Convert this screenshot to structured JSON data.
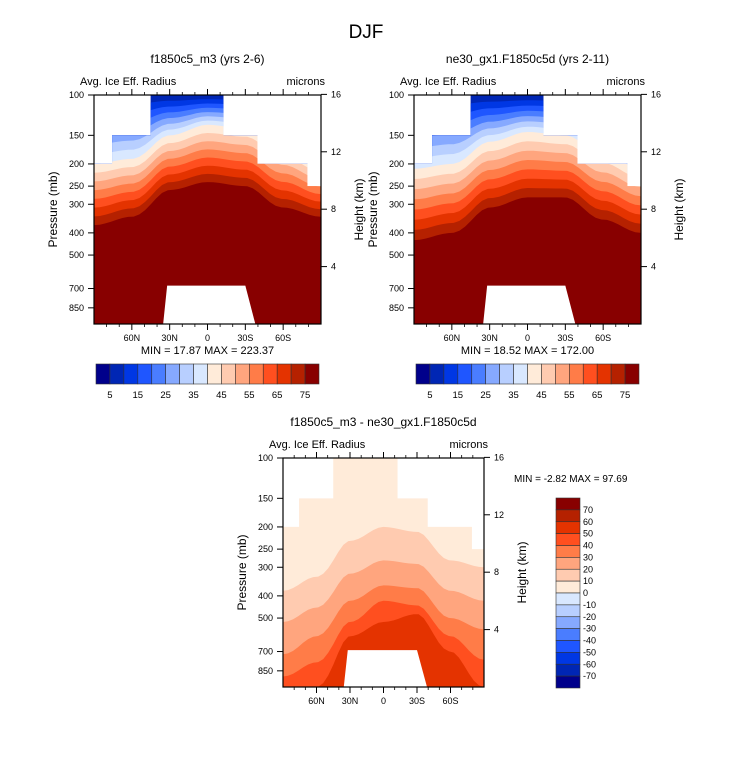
{
  "page_title": "DJF",
  "chart_data": [
    {
      "type": "heatmap",
      "panel": "top-left",
      "title": "f1850c5_m3 (yrs 2-6)",
      "left_string": "Avg. Ice Eff. Radius",
      "right_string": "microns",
      "xlabel": "",
      "ylabel": "Pressure (mb)",
      "ylabel_right": "Height (km)",
      "x_ticks": [
        "60N",
        "30N",
        "0",
        "30S",
        "60S"
      ],
      "x_tick_values": [
        60,
        30,
        0,
        -30,
        -60
      ],
      "xlim": [
        90,
        -90
      ],
      "y_ticks": [
        "100",
        "150",
        "200",
        "250",
        "300",
        "400",
        "500",
        "700",
        "850"
      ],
      "y_tick_values": [
        100,
        150,
        200,
        250,
        300,
        400,
        500,
        700,
        850
      ],
      "ylim": [
        100,
        1000
      ],
      "y_right_ticks": [
        "16",
        "12",
        "8",
        "4"
      ],
      "y_right_tick_values": [
        16,
        12,
        8,
        4
      ],
      "stats": "MIN =  17.87  MAX = 223.37",
      "min": 17.87,
      "max": 223.37,
      "colorbar_labels": [
        "5",
        "15",
        "25",
        "35",
        "45",
        "55",
        "65",
        "75"
      ],
      "colorbar_levels": [
        5,
        10,
        15,
        20,
        25,
        30,
        35,
        40,
        45,
        50,
        55,
        60,
        65,
        70,
        75
      ],
      "profile": {
        "lat": [
          90,
          60,
          30,
          0,
          -30,
          -60,
          -90
        ],
        "level_75_pressure": [
          370,
          340,
          260,
          240,
          250,
          310,
          340
        ],
        "level_40_pressure": [
          200,
          190,
          150,
          135,
          140,
          170,
          200
        ]
      }
    },
    {
      "type": "heatmap",
      "panel": "top-right",
      "title": "ne30_gx1.F1850c5d (yrs 2-11)",
      "left_string": "Avg. Ice Eff. Radius",
      "right_string": "microns",
      "xlabel": "",
      "ylabel": "Pressure (mb)",
      "ylabel_right": "Height (km)",
      "x_ticks": [
        "60N",
        "30N",
        "0",
        "30S",
        "60S"
      ],
      "x_tick_values": [
        60,
        30,
        0,
        -30,
        -60
      ],
      "xlim": [
        90,
        -90
      ],
      "y_ticks": [
        "100",
        "150",
        "200",
        "250",
        "300",
        "400",
        "500",
        "700",
        "850"
      ],
      "y_tick_values": [
        100,
        150,
        200,
        250,
        300,
        400,
        500,
        700,
        850
      ],
      "ylim": [
        100,
        1000
      ],
      "y_right_ticks": [
        "16",
        "12",
        "8",
        "4"
      ],
      "y_right_tick_values": [
        16,
        12,
        8,
        4
      ],
      "stats": "MIN =  18.52  MAX = 172.00",
      "min": 18.52,
      "max": 172.0,
      "colorbar_labels": [
        "5",
        "15",
        "25",
        "35",
        "45",
        "55",
        "65",
        "75"
      ],
      "colorbar_levels": [
        5,
        10,
        15,
        20,
        25,
        30,
        35,
        40,
        45,
        50,
        55,
        60,
        65,
        70,
        75
      ],
      "profile": {
        "lat": [
          90,
          60,
          30,
          0,
          -30,
          -60,
          -90
        ],
        "level_75_pressure": [
          430,
          400,
          310,
          280,
          280,
          350,
          400
        ],
        "level_40_pressure": [
          210,
          200,
          160,
          145,
          150,
          180,
          210
        ]
      }
    },
    {
      "type": "heatmap",
      "panel": "bottom",
      "title": "f1850c5_m3 - ne30_gx1.F1850c5d",
      "left_string": "Avg. Ice Eff. Radius",
      "right_string": "microns",
      "xlabel": "",
      "ylabel": "Pressure (mb)",
      "ylabel_right": "Height (km)",
      "x_ticks": [
        "60N",
        "30N",
        "0",
        "30S",
        "60S"
      ],
      "x_tick_values": [
        60,
        30,
        0,
        -30,
        -60
      ],
      "xlim": [
        90,
        -90
      ],
      "y_ticks": [
        "100",
        "150",
        "200",
        "250",
        "300",
        "400",
        "500",
        "700",
        "850"
      ],
      "y_tick_values": [
        100,
        150,
        200,
        250,
        300,
        400,
        500,
        700,
        850
      ],
      "ylim": [
        100,
        1000
      ],
      "y_right_ticks": [
        "16",
        "12",
        "8",
        "4"
      ],
      "y_right_tick_values": [
        16,
        12,
        8,
        4
      ],
      "stats": "MIN =  -2.82  MAX =  97.69",
      "min": -2.82,
      "max": 97.69,
      "colorbar_labels": [
        "70",
        "60",
        "50",
        "40",
        "30",
        "20",
        "10",
        "0",
        "-10",
        "-20",
        "-30",
        "-40",
        "-50",
        "-60",
        "-70"
      ],
      "colorbar_levels": [
        70,
        60,
        50,
        40,
        30,
        20,
        10,
        0,
        -10,
        -20,
        -30,
        -40,
        -50,
        -60,
        -70
      ],
      "legend": "right"
    }
  ],
  "colormap": [
    "#00008b",
    "#0026b4",
    "#0037e4",
    "#1f56ff",
    "#4a7dff",
    "#86a9ff",
    "#b8cfff",
    "#d9e8ff",
    "#ffebd9",
    "#ffcbb0",
    "#ffa57e",
    "#ff7c48",
    "#ff4f1f",
    "#e43300",
    "#b52100",
    "#880000"
  ]
}
